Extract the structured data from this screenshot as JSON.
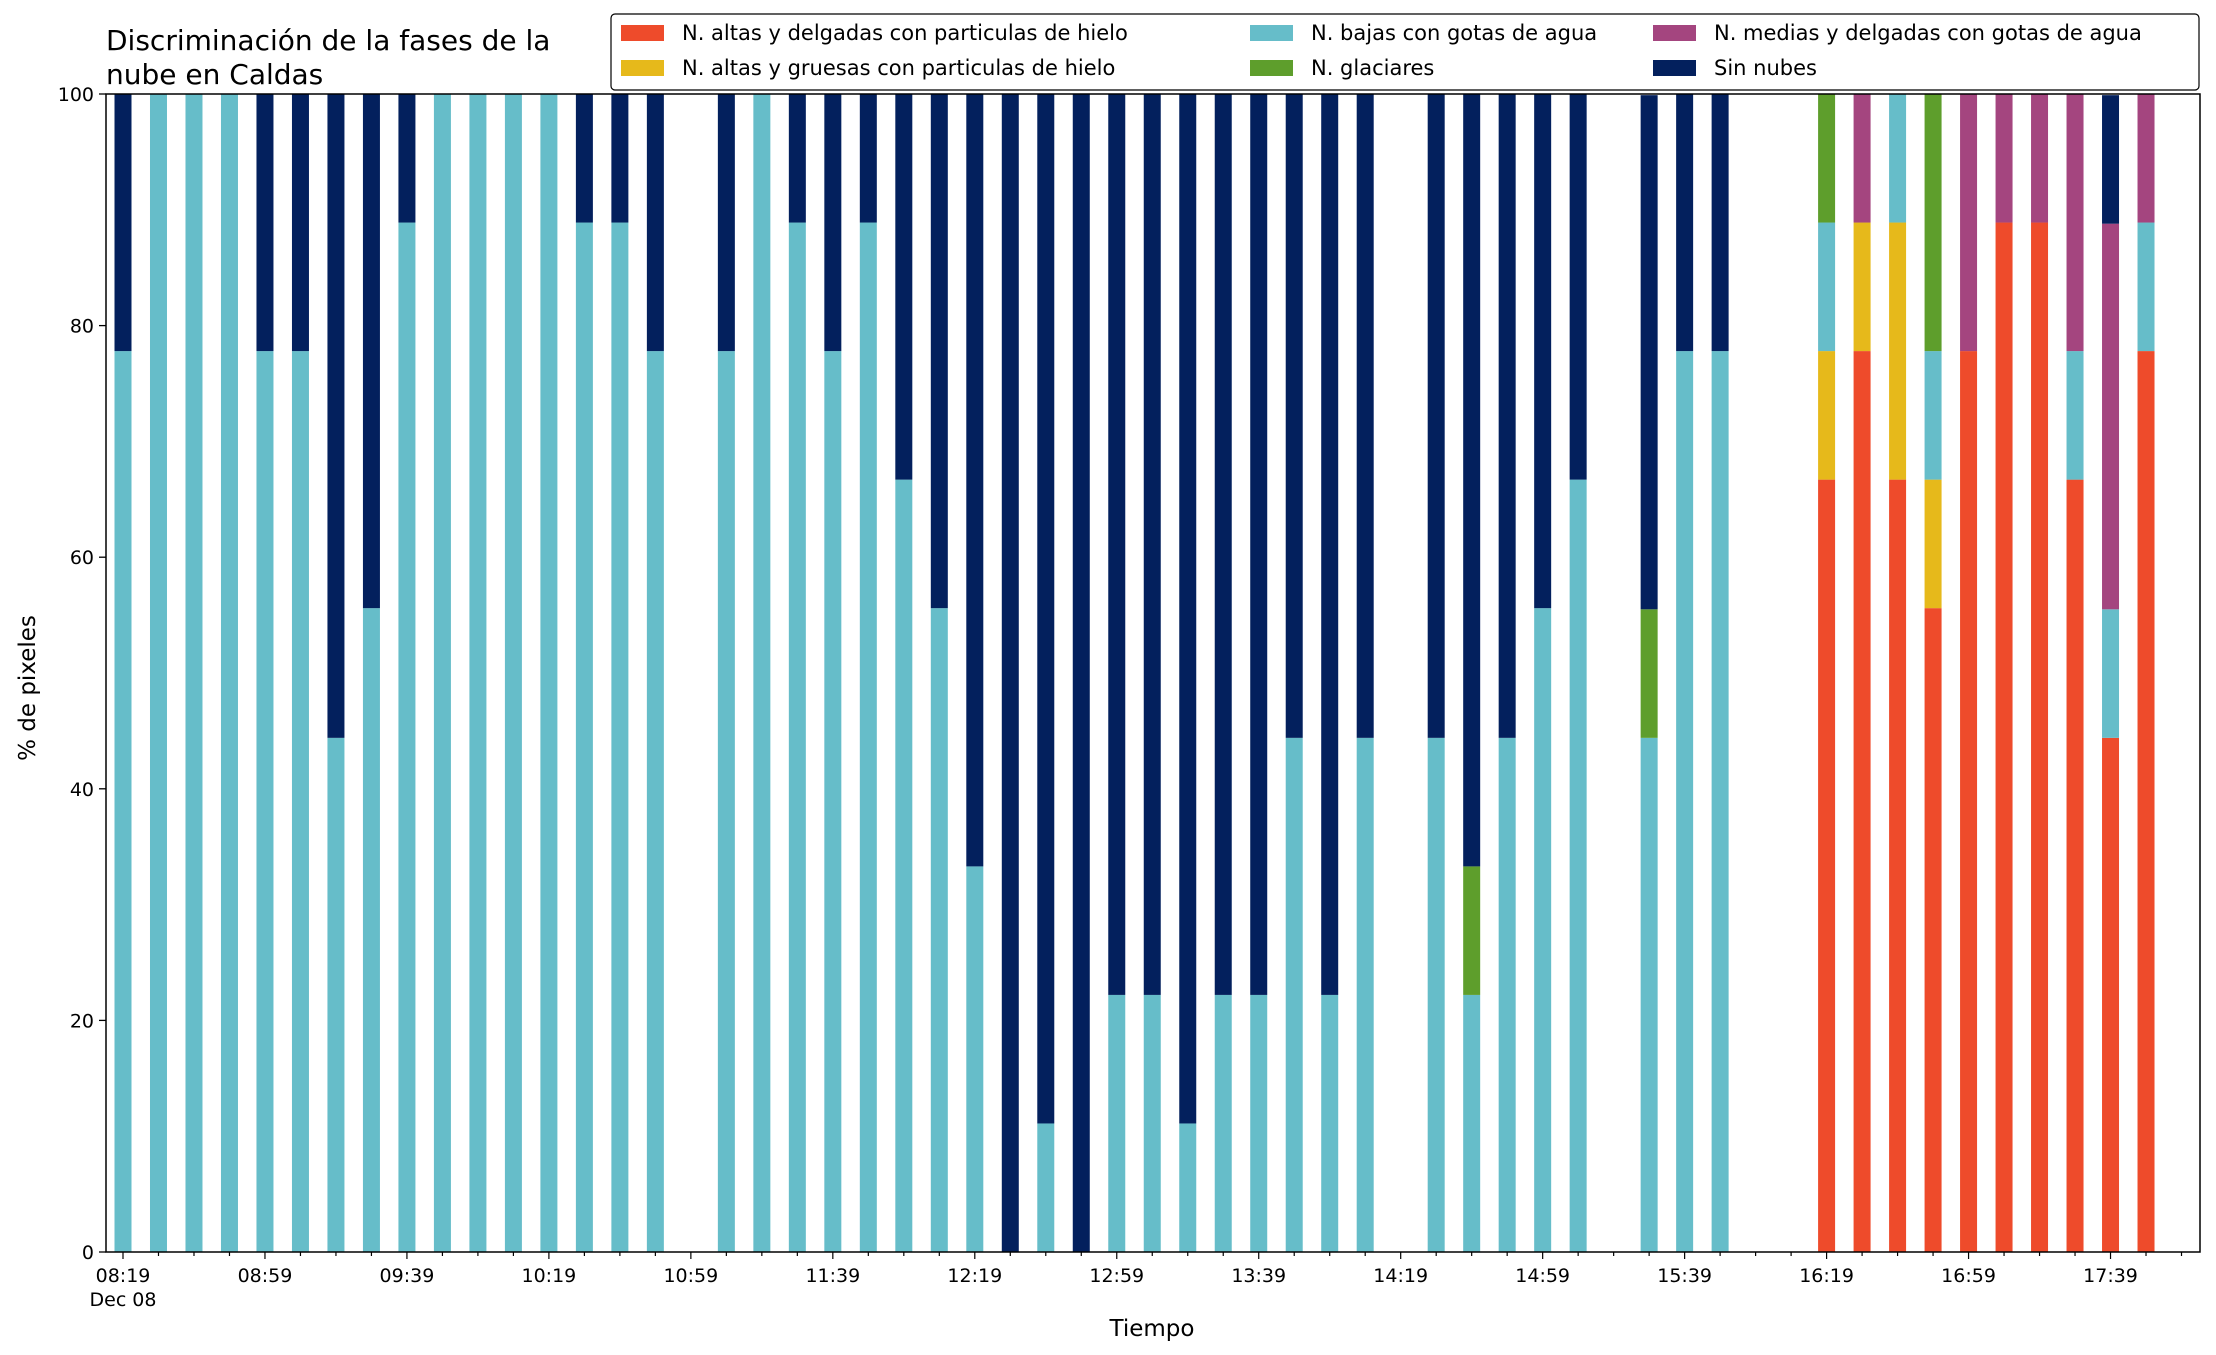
{
  "chart_data": {
    "type": "bar",
    "stacked": true,
    "title_lines": [
      "Discriminación de la fases de la",
      "nube en Caldas"
    ],
    "xlabel": "Tiempo",
    "ylabel": "% de pixeles",
    "ylim": [
      0,
      100
    ],
    "yticks": [
      0,
      20,
      40,
      60,
      80,
      100
    ],
    "legend_position": "top-right",
    "legend_columns": 3,
    "x_start": "08:19",
    "x_step_minutes": 10,
    "x_count": 59,
    "xtick_labels": [
      {
        "index": 0,
        "label": "08:19",
        "sublabel": "Dec 08"
      },
      {
        "index": 4,
        "label": "08:59"
      },
      {
        "index": 8,
        "label": "09:39"
      },
      {
        "index": 12,
        "label": "10:19"
      },
      {
        "index": 16,
        "label": "10:59"
      },
      {
        "index": 20,
        "label": "11:39"
      },
      {
        "index": 24,
        "label": "12:19"
      },
      {
        "index": 28,
        "label": "12:59"
      },
      {
        "index": 32,
        "label": "13:39"
      },
      {
        "index": 36,
        "label": "14:19"
      },
      {
        "index": 40,
        "label": "14:59"
      },
      {
        "index": 44,
        "label": "15:39"
      },
      {
        "index": 48,
        "label": "16:19"
      },
      {
        "index": 52,
        "label": "16:59"
      },
      {
        "index": 56,
        "label": "17:39"
      }
    ],
    "series": [
      {
        "name": "N. altas y delgadas con particulas de hielo",
        "color": "#ee4b2b"
      },
      {
        "name": "N. altas y gruesas con particulas de hielo",
        "color": "#e6b91b"
      },
      {
        "name": "N. bajas con gotas de agua",
        "color": "#66bdc9"
      },
      {
        "name": "N. glaciares",
        "color": "#5e9e2c"
      },
      {
        "name": "N. medias y delgadas con gotas de agua",
        "color": "#a4457f"
      },
      {
        "name": "Sin nubes",
        "color": "#03205d"
      }
    ],
    "bars": [
      {
        "time": "08:19",
        "values": [
          0,
          0,
          77.8,
          0,
          0,
          22.2
        ]
      },
      {
        "time": "08:29",
        "values": [
          0,
          0,
          100,
          0,
          0,
          0
        ]
      },
      {
        "time": "08:39",
        "values": [
          0,
          0,
          100,
          0,
          0,
          0
        ]
      },
      {
        "time": "08:49",
        "values": [
          0,
          0,
          100,
          0,
          0,
          0
        ]
      },
      {
        "time": "08:59",
        "values": [
          0,
          0,
          77.8,
          0,
          0,
          22.2
        ]
      },
      {
        "time": "09:09",
        "values": [
          0,
          0,
          77.8,
          0,
          0,
          22.2
        ]
      },
      {
        "time": "09:19",
        "values": [
          0,
          0,
          44.4,
          0,
          0,
          55.6
        ]
      },
      {
        "time": "09:29",
        "values": [
          0,
          0,
          55.6,
          0,
          0,
          44.4
        ]
      },
      {
        "time": "09:39",
        "values": [
          0,
          0,
          88.9,
          0,
          0,
          11.1
        ]
      },
      {
        "time": "09:49",
        "values": [
          0,
          0,
          100,
          0,
          0,
          0
        ]
      },
      {
        "time": "09:59",
        "values": [
          0,
          0,
          100,
          0,
          0,
          0
        ]
      },
      {
        "time": "10:09",
        "values": [
          0,
          0,
          100,
          0,
          0,
          0
        ]
      },
      {
        "time": "10:19",
        "values": [
          0,
          0,
          100,
          0,
          0,
          0
        ]
      },
      {
        "time": "10:29",
        "values": [
          0,
          0,
          88.9,
          0,
          0,
          11.1
        ]
      },
      {
        "time": "10:39",
        "values": [
          0,
          0,
          88.9,
          0,
          0,
          11.1
        ]
      },
      {
        "time": "10:49",
        "values": [
          0,
          0,
          77.8,
          0,
          0,
          22.2
        ]
      },
      {
        "time": "10:59",
        "values": [
          0,
          0,
          0,
          0,
          0,
          0
        ]
      },
      {
        "time": "11:09",
        "values": [
          0,
          0,
          77.8,
          0,
          0,
          22.2
        ]
      },
      {
        "time": "11:19",
        "values": [
          0,
          0,
          100,
          0,
          0,
          0
        ]
      },
      {
        "time": "11:29",
        "values": [
          0,
          0,
          88.9,
          0,
          0,
          11.1
        ]
      },
      {
        "time": "11:39",
        "values": [
          0,
          0,
          77.8,
          0,
          0,
          22.2
        ]
      },
      {
        "time": "11:49",
        "values": [
          0,
          0,
          88.9,
          0,
          0,
          11.1
        ]
      },
      {
        "time": "11:59",
        "values": [
          0,
          0,
          66.7,
          0,
          0,
          33.3
        ]
      },
      {
        "time": "12:09",
        "values": [
          0,
          0,
          55.6,
          0,
          0,
          44.4
        ]
      },
      {
        "time": "12:19",
        "values": [
          0,
          0,
          33.3,
          0,
          0,
          66.7
        ]
      },
      {
        "time": "12:29",
        "values": [
          0,
          0,
          0,
          0,
          0,
          100
        ]
      },
      {
        "time": "12:39",
        "values": [
          0,
          0,
          11.1,
          0,
          0,
          88.9
        ]
      },
      {
        "time": "12:49",
        "values": [
          0,
          0,
          0,
          0,
          0,
          100
        ]
      },
      {
        "time": "12:59",
        "values": [
          0,
          0,
          22.2,
          0,
          0,
          77.8
        ]
      },
      {
        "time": "13:09",
        "values": [
          0,
          0,
          22.2,
          0,
          0,
          77.8
        ]
      },
      {
        "time": "13:19",
        "values": [
          0,
          0,
          11.1,
          0,
          0,
          88.9
        ]
      },
      {
        "time": "13:29",
        "values": [
          0,
          0,
          22.2,
          0,
          0,
          77.8
        ]
      },
      {
        "time": "13:39",
        "values": [
          0,
          0,
          22.2,
          0,
          0,
          77.8
        ]
      },
      {
        "time": "13:49",
        "values": [
          0,
          0,
          44.4,
          0,
          0,
          55.6
        ]
      },
      {
        "time": "13:59",
        "values": [
          0,
          0,
          22.2,
          0,
          0,
          77.8
        ]
      },
      {
        "time": "14:09",
        "values": [
          0,
          0,
          44.4,
          0,
          0,
          55.6
        ]
      },
      {
        "time": "14:19",
        "values": [
          0,
          0,
          0,
          0,
          0,
          0
        ]
      },
      {
        "time": "14:29",
        "values": [
          0,
          0,
          44.4,
          0,
          0,
          55.6
        ]
      },
      {
        "time": "14:39",
        "values": [
          0,
          0,
          22.2,
          11.1,
          0,
          66.7
        ]
      },
      {
        "time": "14:49",
        "values": [
          0,
          0,
          44.4,
          0,
          0,
          55.6
        ]
      },
      {
        "time": "14:59",
        "values": [
          0,
          0,
          55.6,
          0,
          0,
          44.4
        ]
      },
      {
        "time": "15:09",
        "values": [
          0,
          0,
          66.7,
          0,
          0,
          33.3
        ]
      },
      {
        "time": "15:19",
        "values": [
          0,
          0,
          0,
          0,
          0,
          0
        ]
      },
      {
        "time": "15:29",
        "values": [
          0,
          0,
          44.4,
          11.1,
          0,
          44.4
        ]
      },
      {
        "time": "15:39",
        "values": [
          0,
          0,
          77.8,
          0,
          0,
          22.2
        ]
      },
      {
        "time": "15:49",
        "values": [
          0,
          0,
          77.8,
          0,
          0,
          22.2
        ]
      },
      {
        "time": "15:59",
        "values": [
          0,
          0,
          0,
          0,
          0,
          0
        ]
      },
      {
        "time": "16:09",
        "values": [
          0,
          0,
          0,
          0,
          0,
          0
        ]
      },
      {
        "time": "16:19",
        "values": [
          66.7,
          11.1,
          11.1,
          11.1,
          0,
          0
        ]
      },
      {
        "time": "16:29",
        "values": [
          77.8,
          11.1,
          0,
          0,
          11.1,
          0
        ]
      },
      {
        "time": "16:39",
        "values": [
          66.7,
          22.2,
          11.1,
          0,
          0,
          0
        ]
      },
      {
        "time": "16:49",
        "values": [
          55.6,
          11.1,
          11.1,
          22.2,
          0,
          0
        ]
      },
      {
        "time": "16:59",
        "values": [
          77.8,
          0,
          0,
          0,
          22.2,
          0
        ]
      },
      {
        "time": "17:09",
        "values": [
          88.9,
          0,
          0,
          0,
          11.1,
          0
        ]
      },
      {
        "time": "17:19",
        "values": [
          88.9,
          0,
          0,
          0,
          11.1,
          0
        ]
      },
      {
        "time": "17:29",
        "values": [
          66.7,
          0,
          11.1,
          0,
          22.2,
          0
        ]
      },
      {
        "time": "17:39",
        "values": [
          44.4,
          0,
          11.1,
          0,
          33.3,
          11.1
        ]
      },
      {
        "time": "17:49",
        "values": [
          77.8,
          0,
          11.1,
          0,
          11.1,
          0
        ]
      },
      {
        "time": "17:59",
        "values": [
          0,
          0,
          0,
          0,
          0,
          0
        ]
      }
    ]
  }
}
